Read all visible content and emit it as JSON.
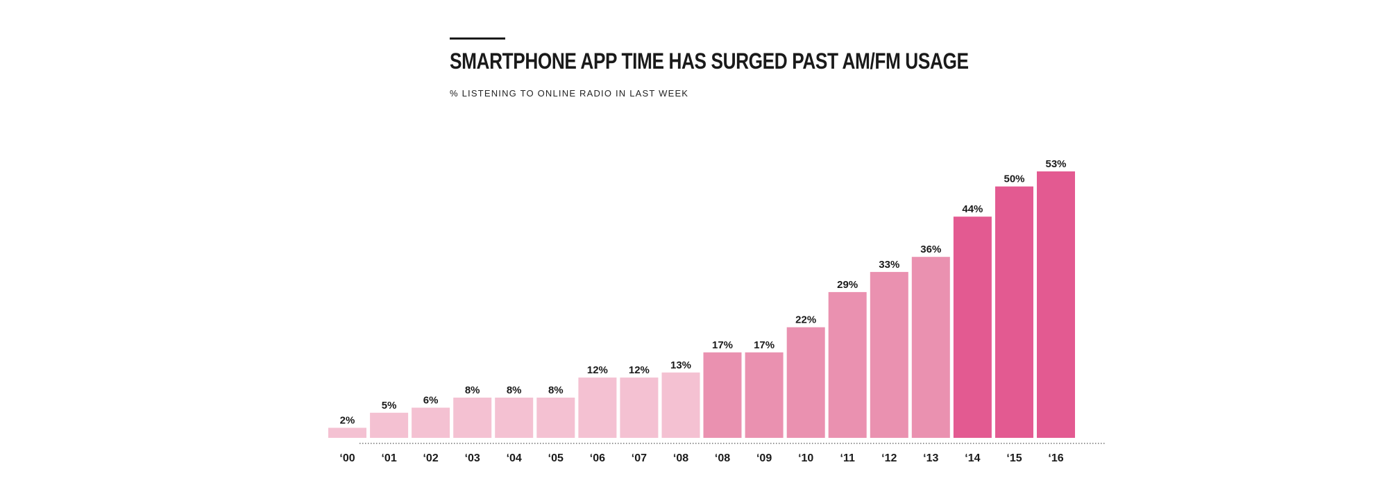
{
  "header": {
    "title": "SMARTPHONE APP TIME HAS SURGED PAST AM/FM USAGE",
    "subtitle": "% LISTENING TO ONLINE RADIO IN LAST WEEK"
  },
  "colors": {
    "light": "#f4c1d2",
    "medium": "#ea91b0",
    "dark": "#e35a91",
    "text": "#1a1a1a",
    "axis": "#555555"
  },
  "chart_data": {
    "type": "bar",
    "title": "SMARTPHONE APP TIME HAS SURGED PAST AM/FM USAGE",
    "subtitle": "% LISTENING TO ONLINE RADIO IN LAST WEEK",
    "xlabel": "",
    "ylabel": "",
    "ylim": [
      0,
      53
    ],
    "grid": false,
    "categories": [
      "‘00",
      "‘01",
      "‘02",
      "‘03",
      "‘04",
      "‘05",
      "‘06",
      "‘07",
      "‘08",
      "‘08",
      "‘09",
      "‘10",
      "‘11",
      "‘12",
      "‘13",
      "‘14",
      "‘15",
      "‘16"
    ],
    "values": [
      2,
      5,
      6,
      8,
      8,
      8,
      12,
      12,
      13,
      17,
      17,
      22,
      29,
      33,
      36,
      44,
      50,
      53
    ],
    "labels": [
      "2%",
      "5%",
      "6%",
      "8%",
      "8%",
      "8%",
      "12%",
      "12%",
      "13%",
      "17%",
      "17%",
      "22%",
      "29%",
      "33%",
      "36%",
      "44%",
      "50%",
      "53%"
    ],
    "shade": [
      "light",
      "light",
      "light",
      "light",
      "light",
      "light",
      "light",
      "light",
      "light",
      "medium",
      "medium",
      "medium",
      "medium",
      "medium",
      "medium",
      "dark",
      "dark",
      "dark"
    ]
  }
}
